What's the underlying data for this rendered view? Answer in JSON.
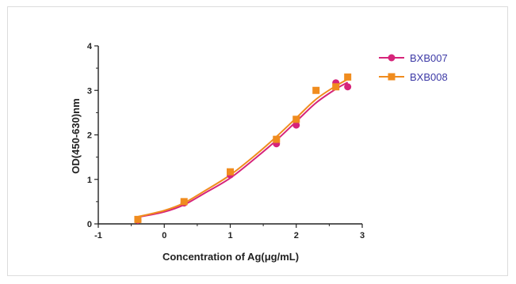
{
  "chart_data": {
    "type": "scatter",
    "title": "",
    "xlabel": "Concentration of Ag(μg/mL)",
    "ylabel": "OD(450-630)nm",
    "xlim": [
      -1,
      3
    ],
    "ylim": [
      0,
      4
    ],
    "xticks": [
      "-1",
      "0",
      "1",
      "2",
      "3"
    ],
    "yticks": [
      "0",
      "1",
      "2",
      "3",
      "4"
    ],
    "grid": false,
    "legend_position": "top-right",
    "fit": "sigmoidal curve through each series",
    "series": [
      {
        "name": "BXB007",
        "color": "#d6247a",
        "marker": "circle",
        "x": [
          -0.4,
          0.3,
          1.0,
          1.7,
          2.0,
          2.6,
          2.78
        ],
        "y": [
          0.08,
          0.47,
          1.1,
          1.8,
          2.22,
          3.17,
          3.08
        ],
        "curve": [
          [
            -0.4,
            0.15
          ],
          [
            0,
            0.27
          ],
          [
            0.3,
            0.43
          ],
          [
            0.6,
            0.68
          ],
          [
            1.0,
            1.03
          ],
          [
            1.4,
            1.5
          ],
          [
            1.7,
            1.88
          ],
          [
            2.0,
            2.3
          ],
          [
            2.3,
            2.72
          ],
          [
            2.6,
            3.03
          ],
          [
            2.78,
            3.18
          ]
        ]
      },
      {
        "name": "BXB008",
        "color": "#f08c1e",
        "marker": "square",
        "x": [
          -0.4,
          0.3,
          1.0,
          1.7,
          2.0,
          2.3,
          2.6,
          2.78
        ],
        "y": [
          0.1,
          0.5,
          1.17,
          1.9,
          2.35,
          3.0,
          3.08,
          3.3
        ],
        "curve": [
          [
            -0.4,
            0.16
          ],
          [
            0,
            0.3
          ],
          [
            0.3,
            0.47
          ],
          [
            0.6,
            0.73
          ],
          [
            1.0,
            1.1
          ],
          [
            1.4,
            1.57
          ],
          [
            1.7,
            1.96
          ],
          [
            2.0,
            2.38
          ],
          [
            2.3,
            2.8
          ],
          [
            2.6,
            3.1
          ],
          [
            2.78,
            3.25
          ]
        ]
      }
    ]
  }
}
